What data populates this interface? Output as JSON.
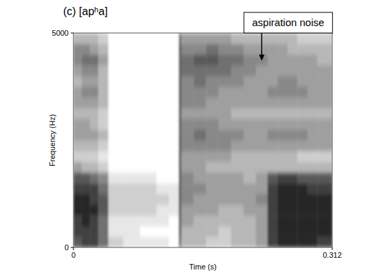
{
  "chart_data": {
    "type": "heatmap",
    "title": "(c) [apʰa]",
    "x_label": "Time (s)",
    "y_label": "Frequency (Hz)",
    "xlim": [
      0,
      0.312
    ],
    "ylim": [
      0,
      5000
    ],
    "xticks": [
      0,
      0.312
    ],
    "yticks": [
      0,
      5000
    ],
    "zlim": [
      0,
      9
    ],
    "time_edges": [
      0,
      0.01,
      0.02,
      0.03,
      0.042,
      0.06,
      0.08,
      0.1,
      0.115,
      0.127,
      0.13,
      0.145,
      0.16,
      0.175,
      0.19,
      0.205,
      0.22,
      0.234,
      0.246,
      0.258,
      0.27,
      0.282,
      0.294,
      0.312
    ],
    "frequency_edges": [
      0,
      250,
      500,
      750,
      1000,
      1250,
      1500,
      1750,
      2000,
      2250,
      2500,
      2750,
      3000,
      3250,
      3500,
      3750,
      4000,
      4250,
      4500,
      4750,
      5000
    ],
    "cells": [
      [
        7,
        8,
        8,
        9,
        9,
        8,
        7,
        4,
        2,
        3,
        4,
        4,
        3,
        4,
        4,
        3,
        4,
        5,
        5,
        3
      ],
      [
        8,
        8,
        9,
        9,
        9,
        8,
        7,
        3,
        2,
        3,
        4,
        4,
        3,
        4,
        5,
        4,
        5,
        6,
        5,
        3
      ],
      [
        8,
        8,
        8,
        9,
        8,
        8,
        6,
        3,
        2,
        3,
        4,
        3,
        3,
        4,
        5,
        4,
        5,
        6,
        4,
        3
      ],
      [
        6,
        6,
        6,
        7,
        7,
        6,
        5,
        2,
        1,
        2,
        3,
        2,
        2,
        3,
        3,
        3,
        3,
        4,
        3,
        2
      ],
      [
        2,
        1,
        1,
        2,
        2,
        2,
        1,
        0,
        0,
        0,
        0,
        0,
        0,
        0,
        0,
        0,
        0,
        0,
        0,
        0
      ],
      [
        1,
        1,
        1,
        2,
        2,
        2,
        1,
        0,
        0,
        0,
        0,
        0,
        0,
        0,
        0,
        0,
        0,
        0,
        0,
        0
      ],
      [
        1,
        0,
        1,
        2,
        2,
        2,
        1,
        0,
        0,
        0,
        0,
        0,
        0,
        0,
        0,
        0,
        0,
        0,
        0,
        0
      ],
      [
        1,
        0,
        1,
        1,
        2,
        1,
        0,
        0,
        0,
        0,
        0,
        0,
        0,
        0,
        0,
        0,
        0,
        0,
        0,
        0
      ],
      [
        0,
        0,
        0,
        1,
        1,
        1,
        0,
        0,
        0,
        0,
        0,
        0,
        0,
        0,
        0,
        0,
        0,
        0,
        0,
        0
      ],
      [
        6,
        7,
        7,
        7,
        7,
        7,
        7,
        7,
        7,
        7,
        7,
        7,
        7,
        7,
        7,
        7,
        7,
        7,
        7,
        6
      ],
      [
        3,
        3,
        4,
        4,
        5,
        5,
        5,
        4,
        4,
        5,
        5,
        5,
        4,
        5,
        5,
        5,
        6,
        6,
        5,
        4
      ],
      [
        3,
        3,
        3,
        4,
        4,
        5,
        4,
        4,
        4,
        5,
        6,
        5,
        4,
        5,
        5,
        6,
        6,
        7,
        5,
        4
      ],
      [
        2,
        3,
        3,
        4,
        4,
        4,
        4,
        3,
        4,
        5,
        5,
        5,
        4,
        4,
        5,
        5,
        6,
        7,
        6,
        4
      ],
      [
        2,
        2,
        3,
        3,
        4,
        4,
        4,
        3,
        4,
        5,
        5,
        4,
        4,
        4,
        4,
        5,
        6,
        6,
        5,
        4
      ],
      [
        3,
        3,
        3,
        3,
        4,
        4,
        4,
        3,
        3,
        4,
        5,
        4,
        3,
        4,
        4,
        5,
        5,
        6,
        5,
        3
      ],
      [
        3,
        3,
        3,
        4,
        4,
        4,
        3,
        3,
        3,
        4,
        4,
        4,
        3,
        4,
        4,
        4,
        5,
        5,
        4,
        3
      ],
      [
        4,
        4,
        4,
        4,
        5,
        4,
        4,
        3,
        3,
        4,
        4,
        4,
        3,
        4,
        4,
        4,
        4,
        5,
        4,
        3
      ],
      [
        8,
        8,
        8,
        8,
        8,
        8,
        7,
        3,
        3,
        4,
        5,
        4,
        3,
        4,
        5,
        4,
        4,
        4,
        4,
        3
      ],
      [
        9,
        9,
        9,
        9,
        9,
        9,
        8,
        3,
        3,
        4,
        5,
        4,
        3,
        4,
        5,
        5,
        4,
        4,
        4,
        3
      ],
      [
        9,
        9,
        9,
        9,
        9,
        9,
        8,
        3,
        3,
        4,
        5,
        4,
        3,
        4,
        5,
        5,
        4,
        4,
        3,
        3
      ],
      [
        9,
        9,
        9,
        9,
        9,
        9,
        7,
        3,
        2,
        4,
        5,
        4,
        3,
        4,
        5,
        4,
        4,
        4,
        3,
        2
      ],
      [
        9,
        9,
        9,
        9,
        9,
        8,
        7,
        3,
        2,
        4,
        4,
        4,
        3,
        4,
        4,
        4,
        4,
        4,
        3,
        2
      ],
      [
        8,
        9,
        9,
        9,
        9,
        8,
        7,
        3,
        2,
        4,
        4,
        4,
        3,
        4,
        4,
        4,
        4,
        3,
        3,
        2
      ]
    ],
    "annotations": [
      {
        "text": "aspiration noise",
        "x": 0.227,
        "y": 4350
      }
    ]
  }
}
